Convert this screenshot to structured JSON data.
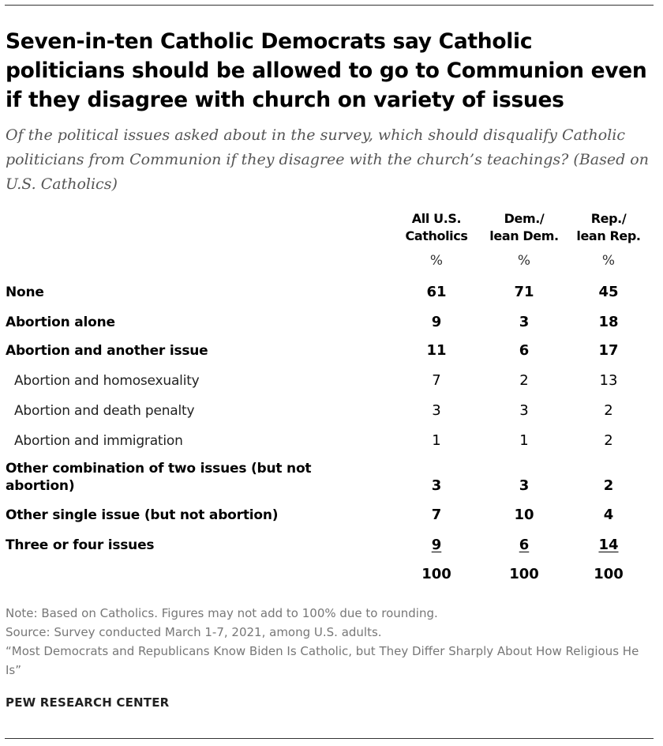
{
  "header": {
    "title": "Seven-in-ten Catholic Democrats say Catholic politicians should be allowed to go to Communion even if they disagree with church on variety of issues",
    "subtitle": "Of the political issues asked about in the survey, which should disqualify Catholic politicians from Communion if they disagree with the church’s teachings? (Based on U.S. Catholics)"
  },
  "chart_data": {
    "type": "table",
    "columns": [
      {
        "line1": "All U.S.",
        "line2": "Catholics",
        "unit": "%"
      },
      {
        "line1": "Dem./",
        "line2": "lean Dem.",
        "unit": "%"
      },
      {
        "line1": "Rep./",
        "line2": "lean Rep.",
        "unit": "%"
      }
    ],
    "rows": [
      {
        "label": "None",
        "values": [
          "61",
          "71",
          "45"
        ],
        "style": "bold"
      },
      {
        "label": "Abortion alone",
        "values": [
          "9",
          "3",
          "18"
        ],
        "style": "bold"
      },
      {
        "label": "Abortion and another issue",
        "values": [
          "11",
          "6",
          "17"
        ],
        "style": "bold"
      },
      {
        "label": "Abortion and homosexuality",
        "values": [
          "7",
          "2",
          "13"
        ],
        "style": "sub"
      },
      {
        "label": "Abortion and death penalty",
        "values": [
          "3",
          "3",
          "2"
        ],
        "style": "sub"
      },
      {
        "label": "Abortion and immigration",
        "values": [
          "1",
          "1",
          "2"
        ],
        "style": "sub"
      },
      {
        "label": "Other combination of two issues (but not abortion)",
        "values": [
          "3",
          "3",
          "2"
        ],
        "style": "bold"
      },
      {
        "label": "Other single issue (but not abortion)",
        "values": [
          "7",
          "10",
          "4"
        ],
        "style": "bold"
      },
      {
        "label": "Three or four issues",
        "values": [
          "9",
          "6",
          "14"
        ],
        "style": "bold-underline"
      }
    ],
    "totals": [
      "100",
      "100",
      "100"
    ]
  },
  "footer": {
    "note": "Note: Based on Catholics. Figures may not add to 100% due to rounding.",
    "source": "Source: Survey conducted March 1-7, 2021, among U.S. adults.",
    "report": "“Most Democrats and Republicans Know Biden Is Catholic, but They Differ Sharply About How Religious He Is”",
    "brand": "PEW RESEARCH CENTER"
  }
}
